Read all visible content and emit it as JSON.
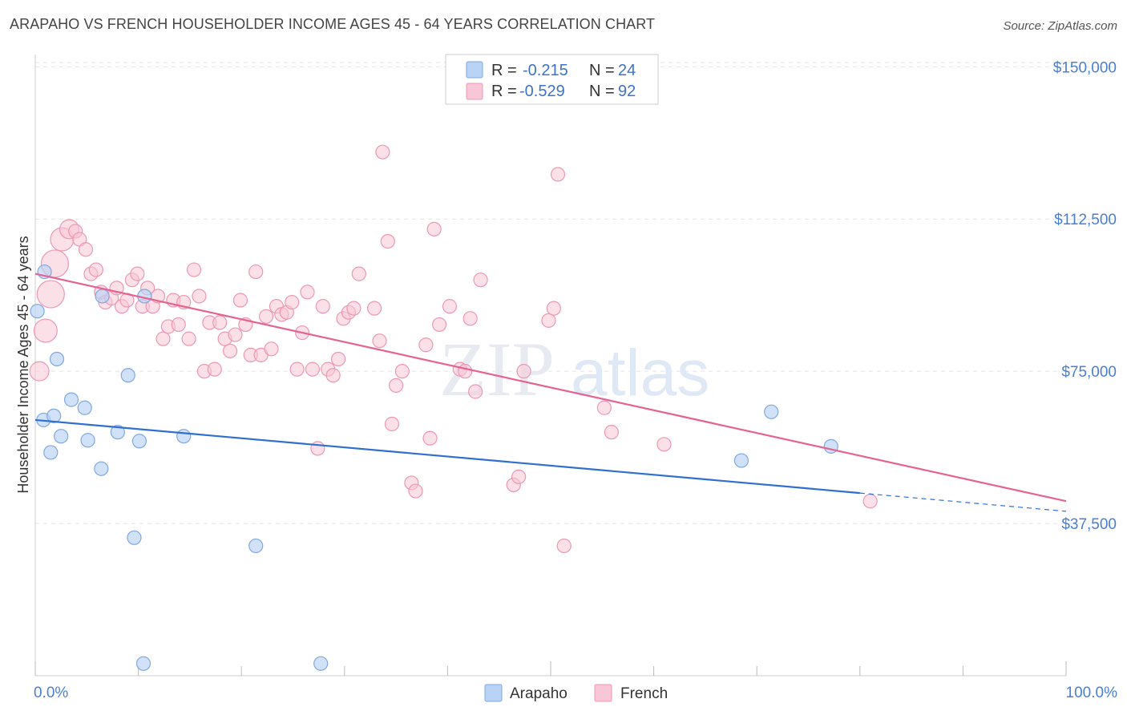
{
  "title": "ARAPAHO VS FRENCH HOUSEHOLDER INCOME AGES 45 - 64 YEARS CORRELATION CHART",
  "source": "Source: ZipAtlas.com",
  "watermark": {
    "zip": "ZIP",
    "atlas": "atlas"
  },
  "colors": {
    "arapaho_fill": "#b8d3f5",
    "arapaho_stroke": "#7fa8df",
    "arapaho_line": "#2f6fd0",
    "french_fill": "#f8c6d6",
    "french_stroke": "#ec98b4",
    "french_line": "#e56390",
    "tick_text": "#4a7fd0",
    "grid": "#e3e3e3"
  },
  "legend": {
    "rows": [
      {
        "r_label": "R =",
        "r_value": "-0.215",
        "n_label": "N =",
        "n_value": "24"
      },
      {
        "r_label": "R =",
        "r_value": "-0.529",
        "n_label": "N =",
        "n_value": "92"
      }
    ]
  },
  "bottom_legend": [
    "Arapaho",
    "French"
  ],
  "chart_data": {
    "type": "scatter",
    "title": "ARAPAHO VS FRENCH HOUSEHOLDER INCOME AGES 45 - 64 YEARS CORRELATION CHART",
    "xlabel": "",
    "ylabel": "Householder Income Ages 45 - 64 years",
    "xlim": [
      0,
      100
    ],
    "ylim": [
      0,
      155000
    ],
    "x_tick_labels": [
      "0.0%",
      "100.0%"
    ],
    "y_ticks": [
      37500,
      75000,
      112500,
      150000
    ],
    "y_tick_labels": [
      "$37,500",
      "$75,000",
      "$112,500",
      "$150,000"
    ],
    "grid": true,
    "legend_position": "top-center",
    "series": [
      {
        "name": "Arapaho",
        "r": -0.215,
        "n": 24,
        "trend": {
          "x": [
            0,
            80
          ],
          "y": [
            63000,
            45000
          ],
          "dashed_to": [
            100,
            40500
          ]
        },
        "points": [
          {
            "x": 0.2,
            "y": 89800,
            "s": 1
          },
          {
            "x": 0.8,
            "y": 63000,
            "s": 1
          },
          {
            "x": 0.9,
            "y": 99500,
            "s": 1
          },
          {
            "x": 1.5,
            "y": 55000,
            "s": 1
          },
          {
            "x": 1.8,
            "y": 64000,
            "s": 1
          },
          {
            "x": 2.1,
            "y": 78000,
            "s": 1
          },
          {
            "x": 2.5,
            "y": 59000,
            "s": 1
          },
          {
            "x": 3.5,
            "y": 68000,
            "s": 1
          },
          {
            "x": 4.8,
            "y": 66000,
            "s": 1
          },
          {
            "x": 5.1,
            "y": 58000,
            "s": 1
          },
          {
            "x": 6.4,
            "y": 51000,
            "s": 1
          },
          {
            "x": 6.5,
            "y": 93500,
            "s": 1
          },
          {
            "x": 8.0,
            "y": 60000,
            "s": 1
          },
          {
            "x": 9.0,
            "y": 74000,
            "s": 1
          },
          {
            "x": 9.6,
            "y": 34000,
            "s": 1
          },
          {
            "x": 10.1,
            "y": 57800,
            "s": 1
          },
          {
            "x": 10.5,
            "y": 3000,
            "s": 1
          },
          {
            "x": 10.6,
            "y": 93500,
            "s": 1
          },
          {
            "x": 14.4,
            "y": 59000,
            "s": 1
          },
          {
            "x": 21.4,
            "y": 32000,
            "s": 1
          },
          {
            "x": 27.7,
            "y": 3000,
            "s": 1
          },
          {
            "x": 71.4,
            "y": 65000,
            "s": 1
          },
          {
            "x": 68.5,
            "y": 53000,
            "s": 1
          },
          {
            "x": 77.2,
            "y": 56500,
            "s": 1
          }
        ]
      },
      {
        "name": "French",
        "r": -0.529,
        "n": 92,
        "trend": {
          "x": [
            0,
            100
          ],
          "y": [
            99000,
            43000
          ]
        },
        "points": [
          {
            "x": 0.4,
            "y": 75000,
            "s": 1.4
          },
          {
            "x": 1.0,
            "y": 85000,
            "s": 1.7
          },
          {
            "x": 1.5,
            "y": 94000,
            "s": 2.0
          },
          {
            "x": 1.9,
            "y": 101500,
            "s": 2.0
          },
          {
            "x": 2.6,
            "y": 107500,
            "s": 1.7
          },
          {
            "x": 3.3,
            "y": 110000,
            "s": 1.4
          },
          {
            "x": 3.9,
            "y": 109500,
            "s": 1
          },
          {
            "x": 4.3,
            "y": 107500,
            "s": 1
          },
          {
            "x": 4.9,
            "y": 105000,
            "s": 1
          },
          {
            "x": 5.4,
            "y": 99000,
            "s": 1
          },
          {
            "x": 5.9,
            "y": 100000,
            "s": 1
          },
          {
            "x": 6.4,
            "y": 94500,
            "s": 1
          },
          {
            "x": 6.8,
            "y": 92000,
            "s": 1
          },
          {
            "x": 7.4,
            "y": 93000,
            "s": 1
          },
          {
            "x": 7.9,
            "y": 95500,
            "s": 1
          },
          {
            "x": 8.4,
            "y": 91000,
            "s": 1
          },
          {
            "x": 8.9,
            "y": 92500,
            "s": 1
          },
          {
            "x": 9.4,
            "y": 97500,
            "s": 1
          },
          {
            "x": 9.9,
            "y": 99000,
            "s": 1
          },
          {
            "x": 10.4,
            "y": 91000,
            "s": 1
          },
          {
            "x": 10.9,
            "y": 95500,
            "s": 1
          },
          {
            "x": 11.4,
            "y": 91000,
            "s": 1
          },
          {
            "x": 11.9,
            "y": 93500,
            "s": 1
          },
          {
            "x": 12.4,
            "y": 83000,
            "s": 1
          },
          {
            "x": 12.9,
            "y": 86000,
            "s": 1
          },
          {
            "x": 13.4,
            "y": 92500,
            "s": 1
          },
          {
            "x": 13.9,
            "y": 86500,
            "s": 1
          },
          {
            "x": 14.4,
            "y": 92000,
            "s": 1
          },
          {
            "x": 14.9,
            "y": 83000,
            "s": 1
          },
          {
            "x": 15.4,
            "y": 100000,
            "s": 1
          },
          {
            "x": 15.9,
            "y": 93500,
            "s": 1
          },
          {
            "x": 16.4,
            "y": 75000,
            "s": 1
          },
          {
            "x": 16.9,
            "y": 87000,
            "s": 1
          },
          {
            "x": 17.4,
            "y": 75500,
            "s": 1
          },
          {
            "x": 17.9,
            "y": 87000,
            "s": 1
          },
          {
            "x": 18.4,
            "y": 83000,
            "s": 1
          },
          {
            "x": 18.9,
            "y": 80000,
            "s": 1
          },
          {
            "x": 19.4,
            "y": 84000,
            "s": 1
          },
          {
            "x": 19.9,
            "y": 92500,
            "s": 1
          },
          {
            "x": 20.4,
            "y": 86500,
            "s": 1
          },
          {
            "x": 20.9,
            "y": 79000,
            "s": 1
          },
          {
            "x": 21.4,
            "y": 99500,
            "s": 1
          },
          {
            "x": 21.9,
            "y": 79000,
            "s": 1
          },
          {
            "x": 22.4,
            "y": 88500,
            "s": 1
          },
          {
            "x": 22.9,
            "y": 80500,
            "s": 1
          },
          {
            "x": 23.4,
            "y": 91000,
            "s": 1
          },
          {
            "x": 23.9,
            "y": 89000,
            "s": 1
          },
          {
            "x": 24.4,
            "y": 89500,
            "s": 1
          },
          {
            "x": 24.9,
            "y": 92000,
            "s": 1
          },
          {
            "x": 25.4,
            "y": 75500,
            "s": 1
          },
          {
            "x": 25.9,
            "y": 84500,
            "s": 1
          },
          {
            "x": 26.4,
            "y": 94500,
            "s": 1
          },
          {
            "x": 26.9,
            "y": 75500,
            "s": 1
          },
          {
            "x": 27.4,
            "y": 56000,
            "s": 1
          },
          {
            "x": 27.9,
            "y": 91000,
            "s": 1
          },
          {
            "x": 28.4,
            "y": 75500,
            "s": 1
          },
          {
            "x": 28.9,
            "y": 74000,
            "s": 1
          },
          {
            "x": 29.4,
            "y": 78000,
            "s": 1
          },
          {
            "x": 29.9,
            "y": 88000,
            "s": 1
          },
          {
            "x": 30.4,
            "y": 89500,
            "s": 1
          },
          {
            "x": 30.9,
            "y": 90500,
            "s": 1
          },
          {
            "x": 31.4,
            "y": 99000,
            "s": 1
          },
          {
            "x": 32.9,
            "y": 90500,
            "s": 1
          },
          {
            "x": 33.4,
            "y": 82500,
            "s": 1
          },
          {
            "x": 33.7,
            "y": 129000,
            "s": 1
          },
          {
            "x": 34.2,
            "y": 107000,
            "s": 1
          },
          {
            "x": 34.6,
            "y": 62000,
            "s": 1
          },
          {
            "x": 35.0,
            "y": 71500,
            "s": 1
          },
          {
            "x": 35.6,
            "y": 75000,
            "s": 1
          },
          {
            "x": 36.5,
            "y": 47500,
            "s": 1
          },
          {
            "x": 36.9,
            "y": 45500,
            "s": 1
          },
          {
            "x": 37.9,
            "y": 81500,
            "s": 1
          },
          {
            "x": 38.3,
            "y": 58500,
            "s": 1
          },
          {
            "x": 38.7,
            "y": 110000,
            "s": 1
          },
          {
            "x": 39.2,
            "y": 86500,
            "s": 1
          },
          {
            "x": 40.2,
            "y": 91000,
            "s": 1
          },
          {
            "x": 41.2,
            "y": 75500,
            "s": 1
          },
          {
            "x": 41.7,
            "y": 75000,
            "s": 1
          },
          {
            "x": 42.2,
            "y": 88000,
            "s": 1
          },
          {
            "x": 42.7,
            "y": 70000,
            "s": 1
          },
          {
            "x": 43.2,
            "y": 97500,
            "s": 1
          },
          {
            "x": 46.4,
            "y": 47000,
            "s": 1
          },
          {
            "x": 46.9,
            "y": 49000,
            "s": 1
          },
          {
            "x": 47.4,
            "y": 75000,
            "s": 1
          },
          {
            "x": 49.8,
            "y": 87500,
            "s": 1
          },
          {
            "x": 50.3,
            "y": 90500,
            "s": 1
          },
          {
            "x": 50.7,
            "y": 123500,
            "s": 1
          },
          {
            "x": 51.3,
            "y": 32000,
            "s": 1
          },
          {
            "x": 55.2,
            "y": 66000,
            "s": 1
          },
          {
            "x": 55.9,
            "y": 60000,
            "s": 1
          },
          {
            "x": 61.0,
            "y": 57000,
            "s": 1
          },
          {
            "x": 81.0,
            "y": 43000,
            "s": 1
          }
        ]
      }
    ]
  }
}
